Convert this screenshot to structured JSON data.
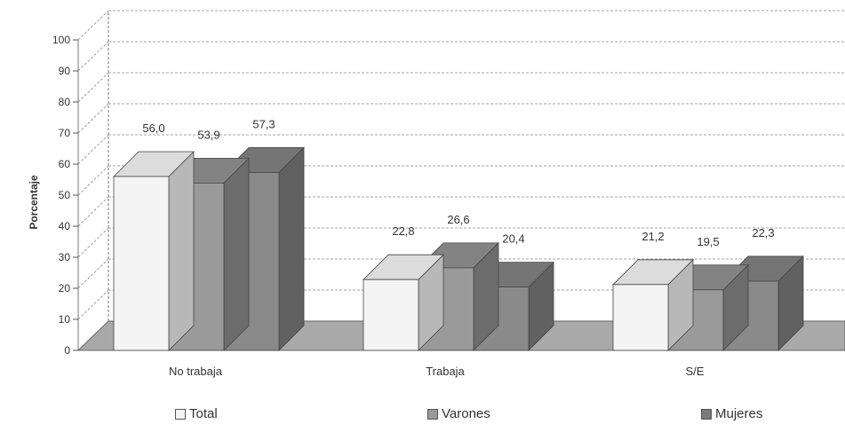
{
  "chart_data": {
    "type": "bar",
    "ylabel": "Porcentaje",
    "ylim": [
      0,
      100
    ],
    "yticks": [
      0,
      10,
      20,
      30,
      40,
      50,
      60,
      70,
      80,
      90,
      100
    ],
    "categories": [
      "No trabaja",
      "Trabaja",
      "S/E"
    ],
    "series": [
      {
        "name": "Total",
        "values": [
          56.0,
          22.8,
          21.2
        ],
        "labels": [
          "56,0",
          "22,8",
          "21,2"
        ],
        "color": "#f4f4f4"
      },
      {
        "name": "Varones",
        "values": [
          53.9,
          26.6,
          19.5
        ],
        "labels": [
          "53,9",
          "26,6",
          "19,5"
        ],
        "color": "#9a9a9a"
      },
      {
        "name": "Mujeres",
        "values": [
          57.3,
          20.4,
          22.3
        ],
        "labels": [
          "57,3",
          "20,4",
          "22,3"
        ],
        "color": "#8a8a8a"
      }
    ],
    "grid": true,
    "legend_position": "bottom",
    "style": "3d"
  }
}
